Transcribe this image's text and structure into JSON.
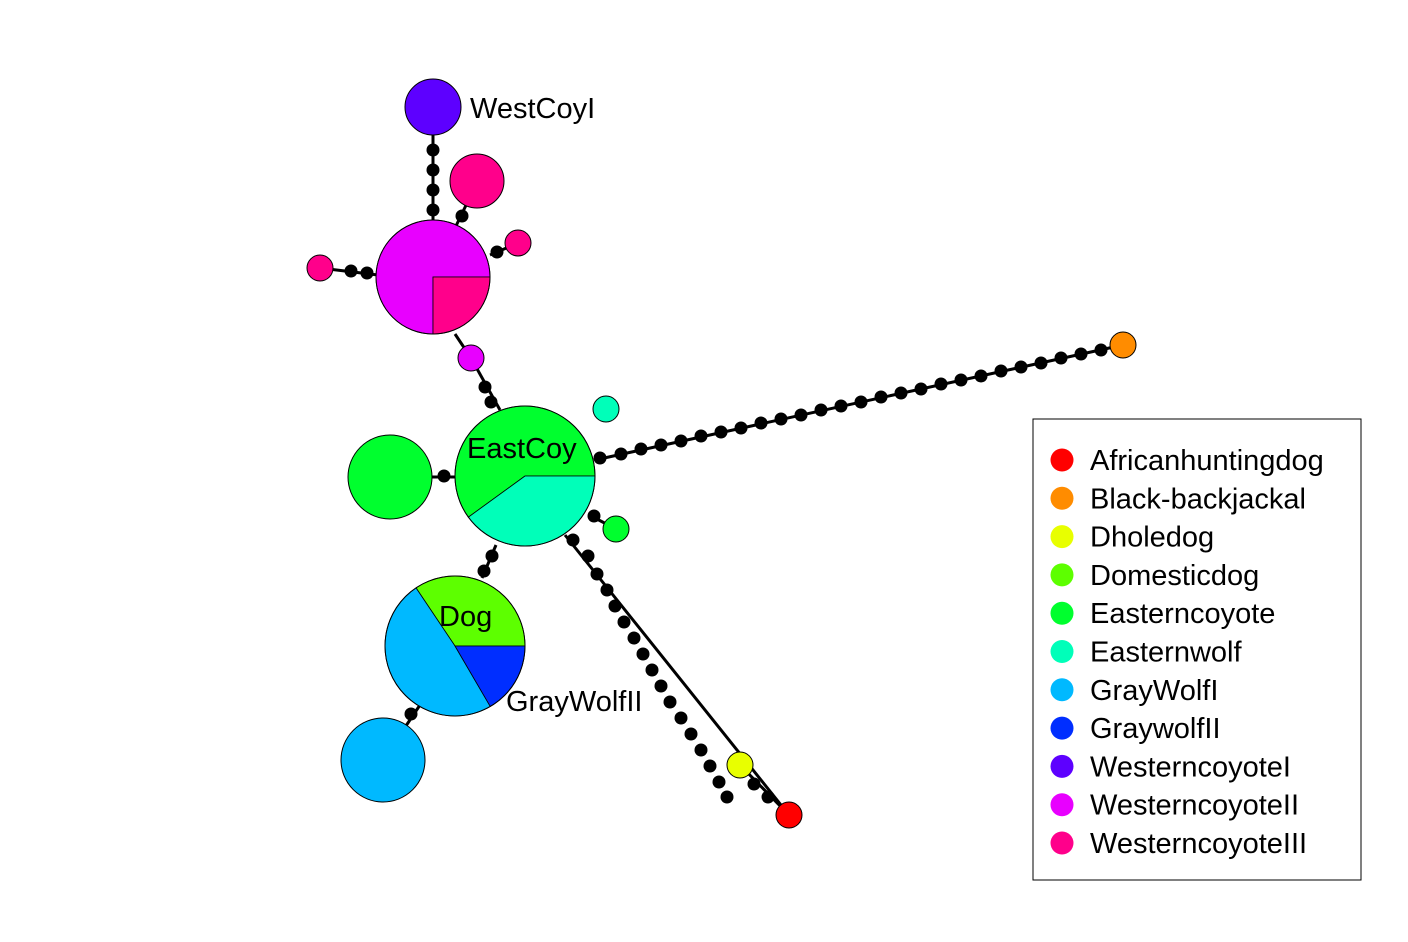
{
  "node_labels": {
    "west_coy_i": "WestCoyI",
    "east_coy": "EastCoy",
    "dog": "Dog",
    "gray_wolf_ii": "GrayWolfII"
  },
  "legend": {
    "items": [
      {
        "label": "Africanhuntingdog",
        "color": "#FF0000"
      },
      {
        "label": "Black-backjackal",
        "color": "#FF8C00"
      },
      {
        "label": "Dholedog",
        "color": "#E8FF00"
      },
      {
        "label": "Domesticdog",
        "color": "#5DFF00"
      },
      {
        "label": "Easterncoyote",
        "color": "#00FF2E"
      },
      {
        "label": "Easternwolf",
        "color": "#00FFB9"
      },
      {
        "label": "GrayWolfI",
        "color": "#00B9FF"
      },
      {
        "label": "GraywolfII",
        "color": "#002EFF"
      },
      {
        "label": "WesterncoyoteI",
        "color": "#5D00FF"
      },
      {
        "label": "WesterncoyoteII",
        "color": "#E800FF"
      },
      {
        "label": "WesterncoyoteIII",
        "color": "#FF008B"
      }
    ]
  }
}
